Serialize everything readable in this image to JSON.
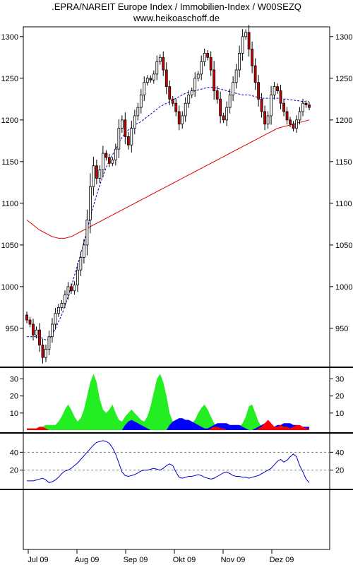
{
  "title": ".EPRA/NAREIT Europe Index / Immobilien-Index / W00SEZQ",
  "subtitle": "www.heikoaschoff.de",
  "colors": {
    "up": "#ffffff",
    "down": "#cc0000",
    "ma_short": "#0000cc",
    "ma_long": "#dd0000",
    "adx_green": "#22ee22",
    "adx_blue": "#0000ff",
    "adx_red": "#ff0000",
    "rsi_line": "#0000cc"
  },
  "chart_data": [
    {
      "type": "candlestick",
      "title": "",
      "ylim": [
        905,
        1310
      ],
      "y_ticks": [
        950,
        1000,
        1050,
        1100,
        1150,
        1200,
        1250,
        1300
      ],
      "y_tick_labels": [
        "950",
        "1000",
        "1050",
        "1100",
        "1150",
        "1200",
        "1250",
        "1300"
      ],
      "x_ticks": [
        "Jul 09",
        "Aug 09",
        "Sep 09",
        "Okt 09",
        "Nov 09",
        "Dez 09"
      ],
      "close": [
        960,
        955,
        942,
        948,
        930,
        915,
        925,
        940,
        955,
        968,
        975,
        980,
        990,
        1000,
        995,
        1002,
        1020,
        1035,
        1050,
        1080,
        1120,
        1145,
        1130,
        1140,
        1160,
        1155,
        1148,
        1152,
        1165,
        1190,
        1200,
        1180,
        1170,
        1190,
        1205,
        1215,
        1230,
        1245,
        1250,
        1248,
        1255,
        1270,
        1275,
        1260,
        1240,
        1225,
        1220,
        1210,
        1195,
        1205,
        1220,
        1230,
        1235,
        1250,
        1255,
        1270,
        1280,
        1275,
        1260,
        1235,
        1225,
        1205,
        1200,
        1215,
        1230,
        1245,
        1260,
        1280,
        1300,
        1305,
        1285,
        1265,
        1245,
        1225,
        1210,
        1195,
        1205,
        1230,
        1240,
        1235,
        1220,
        1210,
        1200,
        1195,
        1190,
        1200,
        1210,
        1220,
        1218,
        1215
      ],
      "ma_short": [
        940,
        940,
        940,
        940,
        939,
        938,
        936,
        937,
        942,
        950,
        958,
        966,
        977,
        988,
        1000,
        1013,
        1026,
        1039,
        1053,
        1068,
        1083,
        1097,
        1110,
        1122,
        1133,
        1143,
        1151,
        1158,
        1165,
        1172,
        1179,
        1184,
        1188,
        1191,
        1194,
        1196,
        1198,
        1201,
        1204,
        1207,
        1210,
        1213,
        1216,
        1218,
        1220,
        1222,
        1224,
        1226,
        1228,
        1230,
        1232,
        1233,
        1234,
        1235,
        1236,
        1237,
        1238,
        1239,
        1239,
        1239,
        1238,
        1237,
        1236,
        1235,
        1234,
        1233,
        1232,
        1231,
        1230,
        1230,
        1230,
        1229,
        1228,
        1227,
        1226,
        1226,
        1226,
        1226,
        1226,
        1226,
        1226,
        1225,
        1225,
        1224,
        1224,
        1223,
        1223,
        1222,
        1222,
        1222
      ],
      "ma_long": [
        1080,
        1077,
        1074,
        1071,
        1068,
        1066,
        1064,
        1062,
        1060,
        1059,
        1058,
        1058,
        1058,
        1059,
        1060,
        1062,
        1064,
        1066,
        1068,
        1070,
        1072,
        1074,
        1076,
        1078,
        1080,
        1082,
        1084,
        1086,
        1088,
        1090,
        1092,
        1094,
        1096,
        1098,
        1100,
        1102,
        1104,
        1106,
        1108,
        1110,
        1112,
        1114,
        1116,
        1118,
        1120,
        1122,
        1124,
        1126,
        1128,
        1130,
        1132,
        1134,
        1136,
        1138,
        1140,
        1142,
        1144,
        1146,
        1148,
        1150,
        1152,
        1154,
        1156,
        1158,
        1160,
        1162,
        1164,
        1166,
        1168,
        1170,
        1172,
        1174,
        1176,
        1178,
        1180,
        1182,
        1184,
        1186,
        1188,
        1190,
        1191,
        1192,
        1193,
        1194,
        1195,
        1196,
        1197,
        1198,
        1199,
        1200
      ]
    },
    {
      "type": "area",
      "title": "",
      "ylim": [
        0,
        36
      ],
      "y_ticks": [
        10,
        20,
        30
      ],
      "y_tick_labels": [
        "10",
        "20",
        "30"
      ],
      "series": [
        {
          "color": "#22ee22",
          "values": [
            1,
            1,
            1,
            1,
            2,
            2,
            3,
            3,
            3,
            3,
            5,
            8,
            12,
            15,
            12,
            8,
            5,
            7,
            12,
            20,
            28,
            33,
            28,
            18,
            12,
            10,
            12,
            15,
            10,
            6,
            5,
            8,
            10,
            12,
            10,
            8,
            6,
            5,
            8,
            14,
            22,
            30,
            33,
            28,
            20,
            10,
            5,
            3,
            2,
            2,
            2,
            3,
            4,
            6,
            10,
            13,
            15,
            12,
            8,
            4,
            2,
            1,
            1,
            1,
            1,
            1,
            1,
            2,
            4,
            8,
            14,
            15,
            10,
            5,
            2,
            1,
            1,
            1,
            1,
            1,
            1,
            1,
            1,
            1,
            1,
            1,
            1,
            1,
            1,
            1
          ]
        },
        {
          "color": "#0000ff",
          "values": [
            0,
            0,
            0,
            0,
            0,
            0,
            0,
            0,
            0,
            0,
            0,
            0,
            0,
            0,
            0,
            0,
            0,
            0,
            0,
            0,
            0,
            0,
            0,
            0,
            0,
            0,
            0,
            0,
            0,
            0,
            0,
            3,
            5,
            6,
            5,
            4,
            3,
            2,
            1,
            0,
            0,
            0,
            0,
            0,
            0,
            3,
            5,
            6,
            7,
            7,
            6,
            6,
            5,
            4,
            3,
            2,
            1,
            1,
            2,
            3,
            4,
            4,
            4,
            4,
            3,
            3,
            3,
            3,
            2,
            1,
            0,
            0,
            1,
            2,
            3,
            4,
            4,
            3,
            2,
            3,
            3,
            4,
            4,
            4,
            3,
            3,
            2,
            2,
            2,
            2
          ]
        },
        {
          "color": "#ff0000",
          "values": [
            1,
            1,
            1,
            1,
            2,
            2,
            1,
            0,
            0,
            0,
            0,
            0,
            0,
            0,
            0,
            0,
            0,
            0,
            0,
            0,
            0,
            0,
            0,
            0,
            0,
            0,
            0,
            0,
            0,
            0,
            0,
            0,
            0,
            0,
            0,
            0,
            0,
            0,
            0,
            0,
            0,
            0,
            0,
            0,
            0,
            0,
            0,
            0,
            0,
            0,
            0,
            0,
            0,
            0,
            0,
            0,
            0,
            0,
            1,
            2,
            2,
            1,
            1,
            0,
            0,
            0,
            0,
            0,
            0,
            0,
            0,
            0,
            0,
            1,
            2,
            4,
            6,
            4,
            2,
            2,
            3,
            2,
            2,
            1,
            2,
            3,
            3,
            2,
            1,
            1
          ]
        }
      ]
    },
    {
      "type": "line",
      "title": "",
      "ylim": [
        0,
        60
      ],
      "y_ticks": [
        20,
        40
      ],
      "y_tick_labels": [
        "20",
        "40"
      ],
      "reference_lines": [
        20,
        40
      ],
      "values": [
        8,
        8,
        8,
        9,
        10,
        11,
        9,
        6,
        7,
        9,
        12,
        16,
        19,
        20,
        22,
        25,
        28,
        32,
        36,
        40,
        44,
        48,
        51,
        52,
        53,
        52,
        50,
        45,
        38,
        28,
        18,
        14,
        13,
        14,
        15,
        17,
        19,
        20,
        20,
        21,
        22,
        21,
        20,
        22,
        25,
        27,
        25,
        18,
        12,
        11,
        12,
        13,
        13,
        14,
        15,
        14,
        12,
        11,
        10,
        11,
        13,
        15,
        17,
        18,
        16,
        14,
        13,
        13,
        12,
        12,
        11,
        12,
        13,
        14,
        16,
        18,
        20,
        22,
        26,
        30,
        32,
        29,
        31,
        35,
        38,
        35,
        25,
        18,
        10,
        6
      ]
    }
  ]
}
